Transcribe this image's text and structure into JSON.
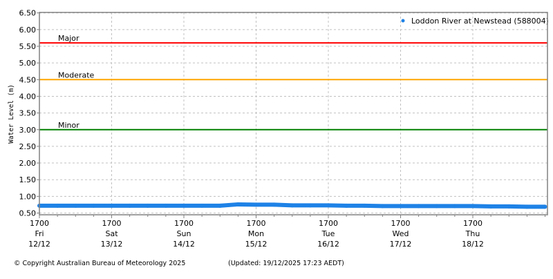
{
  "chart_data": {
    "type": "line",
    "title": "",
    "xlabel": "",
    "ylabel": "Water Level (m)",
    "ylim": [
      0.45,
      6.5
    ],
    "xlim": [
      "2025-12-12T17:00",
      "2025-12-19T17:23"
    ],
    "grid": true,
    "legend_position": "top-right",
    "y_ticks": [
      "0.50",
      "1.00",
      "1.50",
      "2.00",
      "2.50",
      "3.00",
      "3.50",
      "4.00",
      "4.50",
      "5.00",
      "5.50",
      "6.00",
      "6.50"
    ],
    "x_ticks": [
      {
        "t": "2025-12-12T17:00",
        "time": "1700",
        "day": "Fri",
        "date": "12/12"
      },
      {
        "t": "2025-12-13T17:00",
        "time": "1700",
        "day": "Sat",
        "date": "13/12"
      },
      {
        "t": "2025-12-14T17:00",
        "time": "1700",
        "day": "Sun",
        "date": "14/12"
      },
      {
        "t": "2025-12-15T17:00",
        "time": "1700",
        "day": "Mon",
        "date": "15/12"
      },
      {
        "t": "2025-12-16T17:00",
        "time": "1700",
        "day": "Tue",
        "date": "16/12"
      },
      {
        "t": "2025-12-17T17:00",
        "time": "1700",
        "day": "Wed",
        "date": "17/12"
      },
      {
        "t": "2025-12-18T17:00",
        "time": "1700",
        "day": "Thu",
        "date": "18/12"
      }
    ],
    "thresholds": [
      {
        "label": "Major",
        "value": 5.6,
        "color": "#ff0000"
      },
      {
        "label": "Moderate",
        "value": 4.5,
        "color": "#ffa500"
      },
      {
        "label": "Minor",
        "value": 3.0,
        "color": "#008000"
      }
    ],
    "series": [
      {
        "name": "Loddon River at Newstead (588004)",
        "color": "#1e82e6",
        "x": [
          "2025-12-12T17:00",
          "2025-12-12T23:00",
          "2025-12-13T05:00",
          "2025-12-13T11:00",
          "2025-12-13T17:00",
          "2025-12-13T23:00",
          "2025-12-14T05:00",
          "2025-12-14T11:00",
          "2025-12-14T17:00",
          "2025-12-14T23:00",
          "2025-12-15T05:00",
          "2025-12-15T11:00",
          "2025-12-15T17:00",
          "2025-12-15T23:00",
          "2025-12-16T05:00",
          "2025-12-16T11:00",
          "2025-12-16T17:00",
          "2025-12-16T23:00",
          "2025-12-17T05:00",
          "2025-12-17T11:00",
          "2025-12-17T17:00",
          "2025-12-17T23:00",
          "2025-12-18T05:00",
          "2025-12-18T11:00",
          "2025-12-18T17:00",
          "2025-12-18T23:00",
          "2025-12-19T05:00",
          "2025-12-19T11:00",
          "2025-12-19T17:00"
        ],
        "values": [
          0.72,
          0.72,
          0.72,
          0.72,
          0.72,
          0.72,
          0.72,
          0.72,
          0.72,
          0.72,
          0.72,
          0.76,
          0.75,
          0.75,
          0.73,
          0.73,
          0.73,
          0.72,
          0.72,
          0.71,
          0.71,
          0.71,
          0.71,
          0.71,
          0.71,
          0.7,
          0.7,
          0.69,
          0.69
        ]
      }
    ]
  },
  "footer": {
    "copyright": "© Copyright Australian Bureau of Meteorology 2025",
    "updated": "(Updated: 19/12/2025 17:23 AEDT)"
  }
}
